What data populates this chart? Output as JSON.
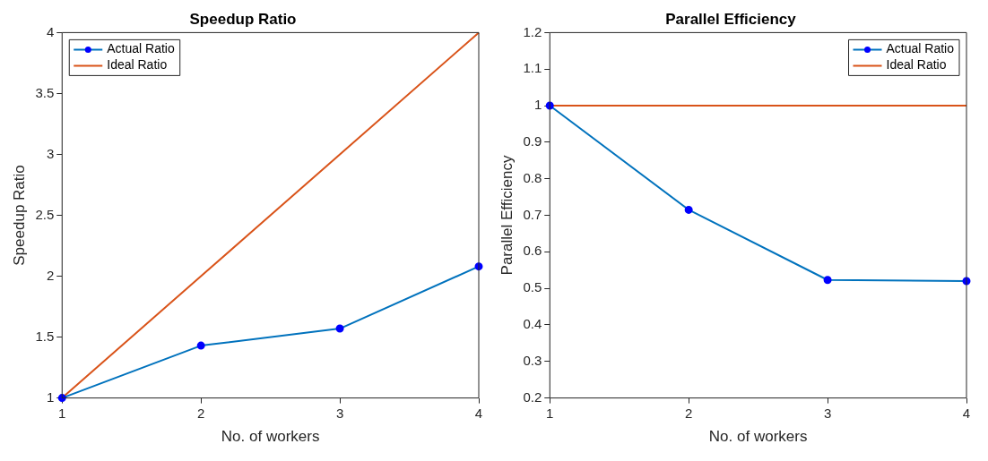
{
  "chart_data": [
    {
      "type": "line",
      "title": "Speedup Ratio",
      "xlabel": "No. of workers",
      "ylabel": "Speedup Ratio",
      "x": [
        1,
        2,
        3,
        4
      ],
      "xlim": [
        1,
        4
      ],
      "xticks": [
        1,
        2,
        3,
        4
      ],
      "ylim": [
        1,
        4
      ],
      "yticks": [
        1,
        1.5,
        2,
        2.5,
        3,
        3.5,
        4
      ],
      "grid": false,
      "legend": "top left",
      "series": [
        {
          "name": "Actual Ratio",
          "color": "#0072bd",
          "marker": "circle",
          "values": [
            1,
            1.43,
            1.57,
            2.08
          ]
        },
        {
          "name": "Ideal Ratio",
          "color": "#d95319",
          "marker": "none",
          "values": [
            1,
            2,
            3,
            4
          ]
        }
      ]
    },
    {
      "type": "line",
      "title": "Parallel Efficiency",
      "xlabel": "No. of workers",
      "ylabel": "Parallel Efficiency",
      "x": [
        1,
        2,
        3,
        4
      ],
      "xlim": [
        1,
        4
      ],
      "xticks": [
        1,
        2,
        3,
        4
      ],
      "ylim": [
        0.2,
        1.2
      ],
      "yticks": [
        0.2,
        0.3,
        0.4,
        0.5,
        0.6,
        0.7,
        0.8,
        0.9,
        1,
        1.1,
        1.2
      ],
      "grid": false,
      "legend": "top right",
      "series": [
        {
          "name": "Actual Ratio",
          "color": "#0072bd",
          "marker": "circle",
          "values": [
            1,
            0.715,
            0.523,
            0.52
          ]
        },
        {
          "name": "Ideal Ratio",
          "color": "#d95319",
          "marker": "none",
          "values": [
            1,
            1,
            1,
            1
          ]
        }
      ]
    }
  ]
}
